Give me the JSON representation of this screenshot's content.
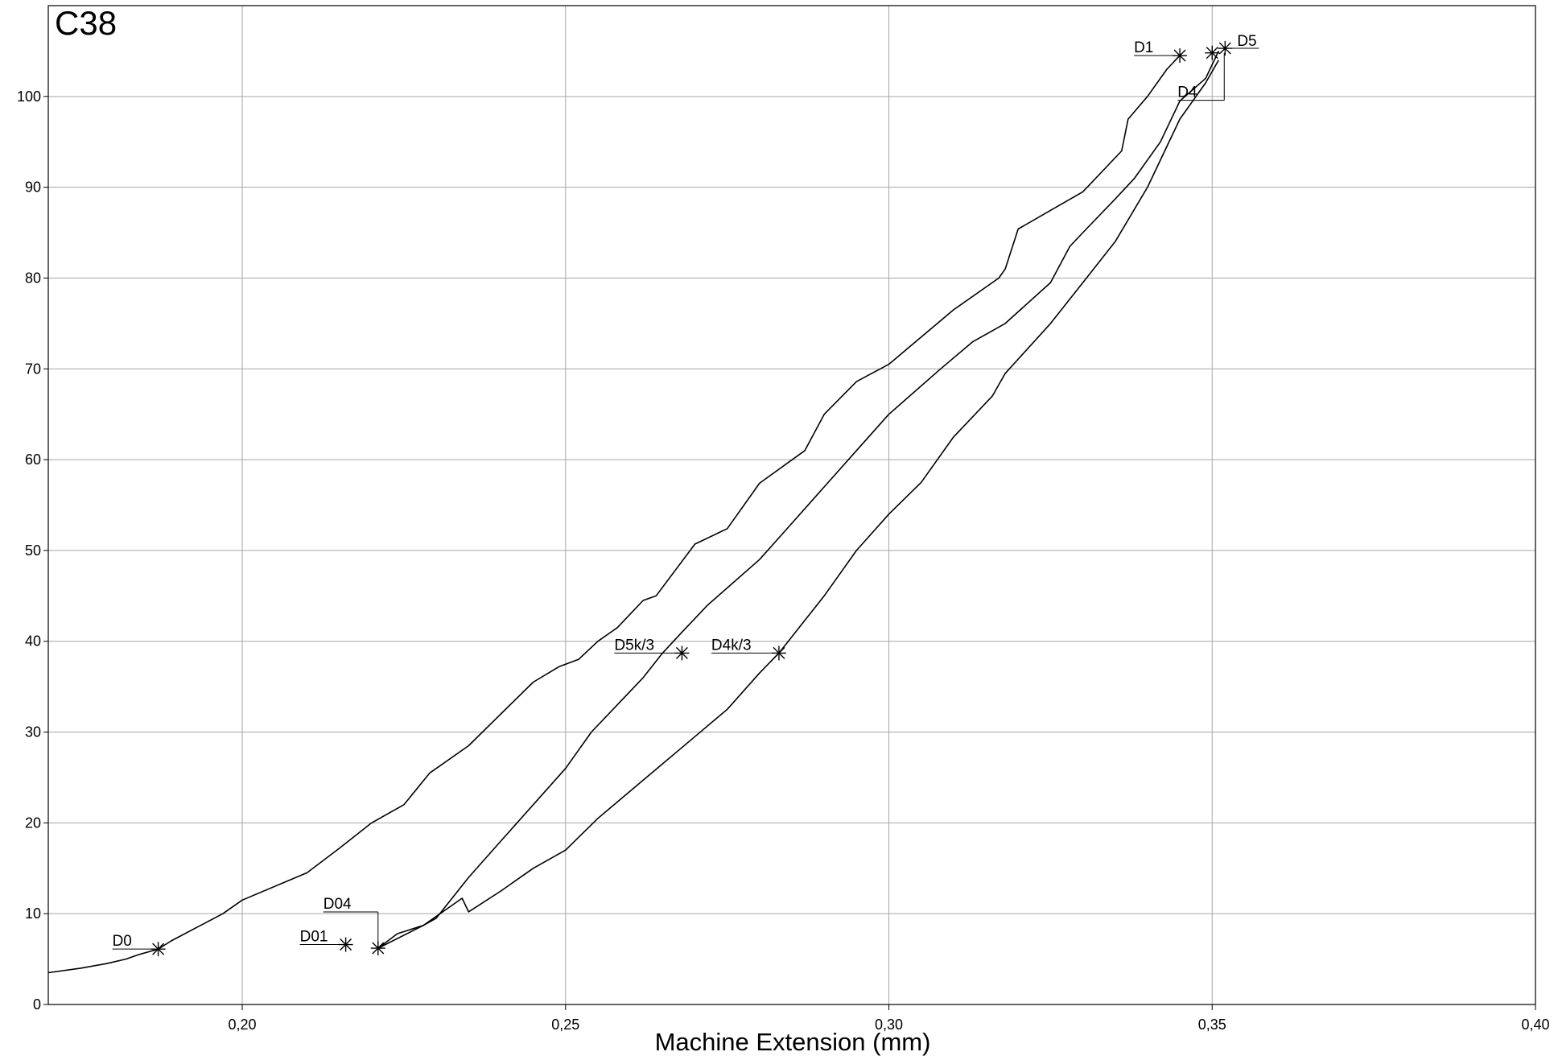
{
  "chart_data": {
    "type": "line",
    "title": "C38",
    "xlabel": "Machine Extension (mm)",
    "ylabel": "",
    "xlim": [
      0.17,
      0.4
    ],
    "ylim": [
      0,
      110
    ],
    "x_ticks": [
      0.2,
      0.25,
      0.3,
      0.35,
      0.4
    ],
    "x_tick_labels": [
      "0,20",
      "0,25",
      "0,30",
      "0,35",
      "0,40"
    ],
    "y_ticks": [
      0,
      10,
      20,
      30,
      40,
      50,
      60,
      70,
      80,
      90,
      100
    ],
    "y_tick_labels": [
      "0",
      "10",
      "20",
      "30",
      "40",
      "50",
      "60",
      "70",
      "80",
      "90",
      "100"
    ],
    "grid": true,
    "colors": {
      "line": "#000000",
      "grid": "#a6a6a6",
      "axes": "#000000",
      "background": "#ffffff"
    },
    "series": [
      {
        "x": [
          0.17,
          0.175,
          0.179,
          0.182,
          0.184,
          0.187,
          0.189,
          0.193,
          0.197,
          0.2,
          0.21,
          0.215,
          0.22,
          0.225,
          0.229,
          0.235,
          0.24,
          0.245,
          0.249,
          0.252,
          0.255,
          0.258,
          0.262,
          0.264,
          0.27,
          0.275,
          0.28,
          0.287,
          0.29,
          0.295,
          0.3,
          0.31,
          0.317,
          0.318,
          0.32,
          0.33,
          0.336,
          0.337,
          0.34,
          0.343,
          0.345
        ],
        "y": [
          3.5,
          4.0,
          4.5,
          5.0,
          5.5,
          6.1,
          7.0,
          8.5,
          10.0,
          11.5,
          14.5,
          17.2,
          20.0,
          22.0,
          25.5,
          28.5,
          32.0,
          35.5,
          37.2,
          38.0,
          40.0,
          41.5,
          44.5,
          45.0,
          50.7,
          52.4,
          57.4,
          61.0,
          65.0,
          68.6,
          70.5,
          76.5,
          80.0,
          81.0,
          85.4,
          89.5,
          94.0,
          97.5,
          100.0,
          103.0,
          104.5
        ]
      },
      {
        "x": [
          0.221,
          0.224,
          0.228,
          0.23,
          0.235,
          0.24,
          0.245,
          0.25,
          0.254,
          0.258,
          0.262,
          0.265,
          0.268,
          0.272,
          0.276,
          0.28,
          0.285,
          0.29,
          0.295,
          0.3,
          0.308,
          0.313,
          0.318,
          0.325,
          0.328,
          0.33,
          0.335,
          0.338,
          0.342,
          0.345,
          0.349,
          0.351
        ],
        "y": [
          6.2,
          7.8,
          8.7,
          9.5,
          14.0,
          18.0,
          22.0,
          26.0,
          30.0,
          33.0,
          36.0,
          38.7,
          41.0,
          44.0,
          46.5,
          49.0,
          53.0,
          57.0,
          61.0,
          65.0,
          70.0,
          73.0,
          75.0,
          79.5,
          83.5,
          85.0,
          88.7,
          91.0,
          95.0,
          99.5,
          102.0,
          105.0
        ]
      },
      {
        "x": [
          0.221,
          0.228,
          0.234,
          0.235,
          0.24,
          0.245,
          0.25,
          0.255,
          0.26,
          0.265,
          0.27,
          0.275,
          0.28,
          0.283,
          0.285,
          0.29,
          0.295,
          0.3,
          0.305,
          0.31,
          0.316,
          0.318,
          0.325,
          0.33,
          0.335,
          0.34,
          0.345,
          0.349,
          0.351
        ],
        "y": [
          6.2,
          8.7,
          11.7,
          10.2,
          12.5,
          15.0,
          17.0,
          20.5,
          23.5,
          26.5,
          29.5,
          32.5,
          36.5,
          38.7,
          40.5,
          45.0,
          50.0,
          54.0,
          57.5,
          62.5,
          67.0,
          69.5,
          75.0,
          79.5,
          84.0,
          90.0,
          97.5,
          101.5,
          104.0
        ]
      }
    ],
    "annotations": [
      {
        "text": "D0",
        "x": 0.187,
        "y": 6.1,
        "side": "left"
      },
      {
        "text": "D01",
        "x": 0.216,
        "y": 6.6,
        "side": "left"
      },
      {
        "text": "D04",
        "x": 0.221,
        "y": 6.2,
        "side": "left-raised"
      },
      {
        "text": "D5k/3",
        "x": 0.268,
        "y": 38.7,
        "side": "left"
      },
      {
        "text": "D4k/3",
        "x": 0.283,
        "y": 38.7,
        "side": "left"
      },
      {
        "text": "D1",
        "x": 0.345,
        "y": 104.5,
        "side": "left"
      },
      {
        "text": "D4",
        "x": 0.35,
        "y": 104.8,
        "side": "left-lowered"
      },
      {
        "text": "D5",
        "x": 0.352,
        "y": 105.3,
        "side": "right"
      }
    ]
  }
}
